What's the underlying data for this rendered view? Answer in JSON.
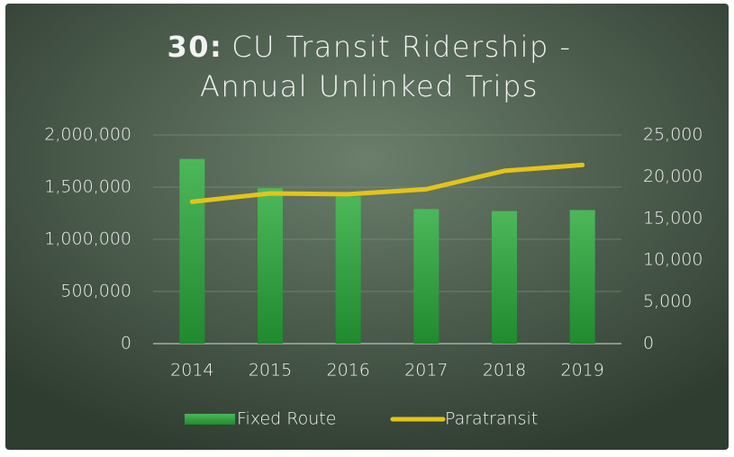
{
  "chart_data": {
    "type": "bar",
    "title": {
      "number": "30:",
      "lines": [
        "CU Transit Ridership -",
        "Annual Unlinked Trips"
      ]
    },
    "categories": [
      "2014",
      "2015",
      "2016",
      "2017",
      "2018",
      "2019"
    ],
    "series": [
      {
        "name": "Fixed Route",
        "type": "bar",
        "color": "#2f9e3c",
        "values": [
          1770000,
          1490000,
          1410000,
          1290000,
          1270000,
          1280000
        ]
      },
      {
        "name": "Paratransit",
        "type": "line",
        "axis": "y2",
        "color": "#e3c41a",
        "values": [
          17000,
          18000,
          17900,
          18500,
          20700,
          21400
        ]
      }
    ],
    "ylim": [
      0,
      2000000
    ],
    "yticks": [
      0,
      {
        "value": 500000,
        "label": "500,000"
      },
      {
        "value": 1000000,
        "label": "1,000,000"
      },
      {
        "value": 1500000,
        "label": "1,500,000"
      },
      {
        "value": 2000000,
        "label": "2,000,000"
      }
    ],
    "y2lim": [
      0,
      25000
    ],
    "y2ticks": [
      0,
      {
        "value": 5000,
        "label": "5,000"
      },
      {
        "value": 10000,
        "label": "10,000"
      },
      {
        "value": 15000,
        "label": "15,000"
      },
      {
        "value": 20000,
        "label": "20,000"
      },
      {
        "value": 25000,
        "label": "25,000"
      }
    ],
    "grid": true,
    "legend": "bottom"
  }
}
